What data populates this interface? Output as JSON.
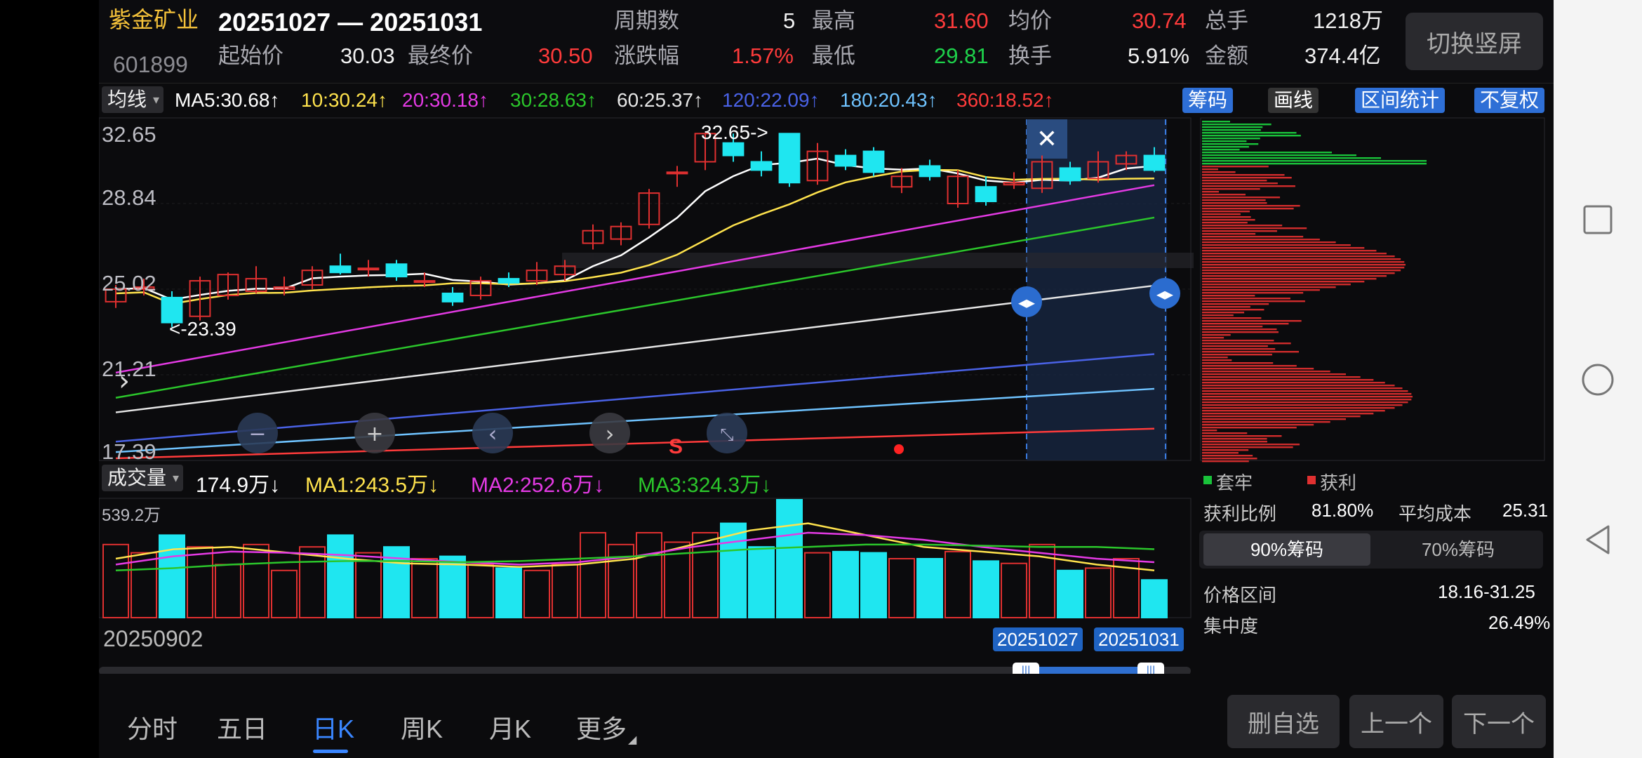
{
  "header": {
    "stock_name": "紫金矿业",
    "stock_code": "601899",
    "date_range": "20251027 — 20251031",
    "open_label": "起始价",
    "open_value": "30.03",
    "close_label": "最终价",
    "close_value": "30.50",
    "period_label": "周期数",
    "period_value": "5",
    "change_label": "涨跌幅",
    "change_value": "1.57%",
    "high_label": "最高",
    "high_value": "31.60",
    "low_label": "最低",
    "low_value": "29.81",
    "avg_label": "均价",
    "avg_value": "30.74",
    "turnover_label": "换手",
    "turnover_value": "5.91%",
    "volume_label": "总手",
    "volume_value": "1218万",
    "amount_label": "金额",
    "amount_value": "374.4亿",
    "switch_label": "切换竖屏"
  },
  "ma_bar": {
    "dropdown": "均线",
    "items": [
      {
        "text": "MA5:30.68↑",
        "color": "#ffffff"
      },
      {
        "text": "10:30.24↑",
        "color": "#ffe34d"
      },
      {
        "text": "20:30.18↑",
        "color": "#e43ae4"
      },
      {
        "text": "30:28.63↑",
        "color": "#2bc62b"
      },
      {
        "text": "60:25.37↑",
        "color": "#e6e6e6"
      },
      {
        "text": "120:22.09↑",
        "color": "#4a62e6"
      },
      {
        "text": "180:20.43↑",
        "color": "#6fc3ff"
      },
      {
        "text": "360:18.52↑",
        "color": "#ff3b3b"
      }
    ],
    "btn_chips": "筹码",
    "btn_draw": "画线",
    "btn_range": "区间统计",
    "btn_adjust": "不复权"
  },
  "price_axis": [
    "32.65",
    "28.84",
    "25.02",
    "21.21",
    "17.39"
  ],
  "annotations": {
    "high": "32.65->",
    "low": "<-23.39",
    "signal": "S"
  },
  "candles": [
    {
      "o": 24.6,
      "c": 25.2,
      "h": 25.4,
      "l": 24.3
    },
    {
      "o": 25.2,
      "c": 25.3,
      "h": 25.7,
      "l": 24.9
    },
    {
      "o": 24.8,
      "c": 23.6,
      "h": 25.1,
      "l": 23.39
    },
    {
      "o": 23.9,
      "c": 25.6,
      "h": 25.8,
      "l": 23.7
    },
    {
      "o": 24.9,
      "c": 25.9,
      "h": 26.0,
      "l": 24.7
    },
    {
      "o": 25.1,
      "c": 25.7,
      "h": 26.3,
      "l": 25.0
    },
    {
      "o": 25.2,
      "c": 25.3,
      "h": 25.8,
      "l": 24.9
    },
    {
      "o": 25.4,
      "c": 26.1,
      "h": 26.3,
      "l": 25.2
    },
    {
      "o": 26.3,
      "c": 26.0,
      "h": 26.9,
      "l": 25.9
    },
    {
      "o": 26.2,
      "c": 26.2,
      "h": 26.6,
      "l": 25.8
    },
    {
      "o": 26.4,
      "c": 25.8,
      "h": 26.6,
      "l": 25.6
    },
    {
      "o": 25.6,
      "c": 25.6,
      "h": 26.0,
      "l": 25.3
    },
    {
      "o": 25.0,
      "c": 24.6,
      "h": 25.3,
      "l": 24.4
    },
    {
      "o": 24.9,
      "c": 25.6,
      "h": 25.8,
      "l": 24.7
    },
    {
      "o": 25.7,
      "c": 25.5,
      "h": 26.0,
      "l": 25.3
    },
    {
      "o": 25.6,
      "c": 26.1,
      "h": 26.5,
      "l": 25.4
    },
    {
      "o": 25.9,
      "c": 26.3,
      "h": 26.6,
      "l": 25.6
    },
    {
      "o": 27.4,
      "c": 28.0,
      "h": 28.3,
      "l": 27.1
    },
    {
      "o": 27.6,
      "c": 28.2,
      "h": 28.4,
      "l": 27.3
    },
    {
      "o": 28.3,
      "c": 29.8,
      "h": 30.0,
      "l": 28.1
    },
    {
      "o": 30.8,
      "c": 30.8,
      "h": 31.1,
      "l": 30.1
    },
    {
      "o": 31.3,
      "c": 32.65,
      "h": 32.65,
      "l": 30.9
    },
    {
      "o": 32.2,
      "c": 31.6,
      "h": 32.65,
      "l": 31.3
    },
    {
      "o": 31.3,
      "c": 30.9,
      "h": 31.8,
      "l": 30.6
    },
    {
      "o": 32.65,
      "c": 30.3,
      "h": 32.65,
      "l": 30.1
    },
    {
      "o": 30.4,
      "c": 31.8,
      "h": 32.2,
      "l": 30.2
    },
    {
      "o": 31.6,
      "c": 31.1,
      "h": 31.9,
      "l": 30.9
    },
    {
      "o": 31.8,
      "c": 30.8,
      "h": 32.0,
      "l": 30.6
    },
    {
      "o": 30.1,
      "c": 30.6,
      "h": 31.0,
      "l": 29.8
    },
    {
      "o": 31.1,
      "c": 30.6,
      "h": 31.4,
      "l": 30.4
    },
    {
      "o": 29.3,
      "c": 30.6,
      "h": 30.9,
      "l": 29.1
    },
    {
      "o": 30.1,
      "c": 29.4,
      "h": 30.6,
      "l": 29.2
    },
    {
      "o": 30.2,
      "c": 30.3,
      "h": 30.8,
      "l": 30.0
    },
    {
      "o": 30.03,
      "c": 31.3,
      "h": 31.6,
      "l": 29.81
    },
    {
      "o": 31.0,
      "c": 30.4,
      "h": 31.3,
      "l": 30.2
    },
    {
      "o": 30.5,
      "c": 31.3,
      "h": 31.8,
      "l": 30.3
    },
    {
      "o": 31.2,
      "c": 31.6,
      "h": 31.8,
      "l": 30.9
    },
    {
      "o": 31.6,
      "c": 30.9,
      "h": 32.0,
      "l": 30.8
    }
  ],
  "volume_panel": {
    "dropdown": "成交量",
    "current": "174.9万↓",
    "ma1": "MA1:243.5万↓",
    "ma2": "MA2:252.6万↓",
    "ma3": "MA3:324.3万↓",
    "max_label": "539.2万",
    "start_date": "20250902",
    "range_start": "20251027",
    "range_end": "20251031"
  },
  "chips": {
    "legend_trapped": "套牢",
    "legend_profit": "获利",
    "profit_ratio_label": "获利比例",
    "profit_ratio_value": "81.80%",
    "avg_cost_label": "平均成本",
    "avg_cost_value": "25.31",
    "tab_90": "90%筹码",
    "tab_70": "70%筹码",
    "price_range_label": "价格区间",
    "price_range_value": "18.16-31.25",
    "concentration_label": "集中度",
    "concentration_value": "26.49%"
  },
  "tabs": [
    "分时",
    "五日",
    "日K",
    "周K",
    "月K",
    "更多"
  ],
  "actions": {
    "remove": "删自选",
    "prev": "上一个",
    "next": "下一个"
  }
}
